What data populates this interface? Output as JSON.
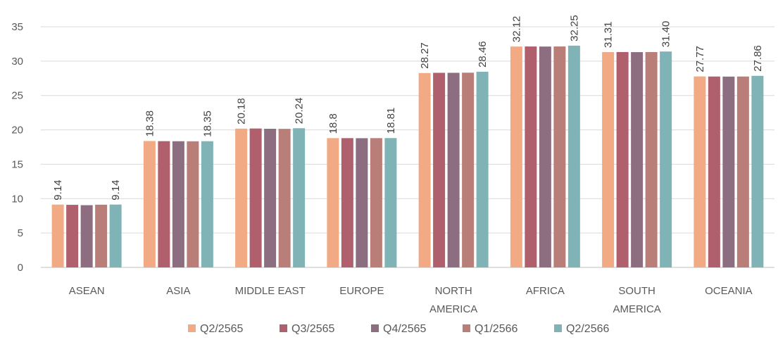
{
  "chart_data": {
    "type": "bar",
    "title": "",
    "xlabel": "",
    "ylabel": "",
    "ylim": [
      0,
      35
    ],
    "yticks": [
      0,
      5,
      10,
      15,
      20,
      25,
      30,
      35
    ],
    "grid": true,
    "legend_position": "bottom",
    "categories": [
      [
        "ASEAN"
      ],
      [
        "ASIA"
      ],
      [
        "MIDDLE EAST"
      ],
      [
        "EUROPE"
      ],
      [
        "NORTH",
        "AMERICA"
      ],
      [
        "AFRICA"
      ],
      [
        "SOUTH",
        "AMERICA"
      ],
      [
        "OCEANIA"
      ]
    ],
    "series": [
      {
        "name": "Q2/2565",
        "color": "#F2AA84",
        "values": [
          9.14,
          18.38,
          20.18,
          18.8,
          28.27,
          32.12,
          31.31,
          27.77
        ]
      },
      {
        "name": "Q3/2565",
        "color": "#B05F6D",
        "values": [
          9.1,
          18.36,
          20.2,
          18.8,
          28.3,
          32.13,
          31.32,
          27.76
        ]
      },
      {
        "name": "Q4/2565",
        "color": "#8D6E81",
        "values": [
          9.05,
          18.35,
          20.16,
          18.79,
          28.3,
          32.12,
          31.31,
          27.75
        ]
      },
      {
        "name": "Q1/2566",
        "color": "#BA7E79",
        "values": [
          9.12,
          18.34,
          20.15,
          18.8,
          28.32,
          32.13,
          31.32,
          27.76
        ]
      },
      {
        "name": "Q2/2566",
        "color": "#7FB3B6",
        "values": [
          9.14,
          18.35,
          20.24,
          18.81,
          28.46,
          32.25,
          31.4,
          27.86
        ]
      }
    ],
    "data_labels": [
      {
        "category": 0,
        "series": 0,
        "text": "9.14"
      },
      {
        "category": 0,
        "series": 4,
        "text": "9.14"
      },
      {
        "category": 1,
        "series": 0,
        "text": "18.38"
      },
      {
        "category": 1,
        "series": 4,
        "text": "18.35"
      },
      {
        "category": 2,
        "series": 0,
        "text": "20.18"
      },
      {
        "category": 2,
        "series": 4,
        "text": "20.24"
      },
      {
        "category": 3,
        "series": 0,
        "text": "18.8"
      },
      {
        "category": 3,
        "series": 4,
        "text": "18.81"
      },
      {
        "category": 4,
        "series": 0,
        "text": "28.27"
      },
      {
        "category": 4,
        "series": 4,
        "text": "28.46"
      },
      {
        "category": 5,
        "series": 0,
        "text": "32.12"
      },
      {
        "category": 5,
        "series": 4,
        "text": "32.25"
      },
      {
        "category": 6,
        "series": 0,
        "text": "31.31"
      },
      {
        "category": 6,
        "series": 4,
        "text": "31.40"
      },
      {
        "category": 7,
        "series": 0,
        "text": "27.77"
      },
      {
        "category": 7,
        "series": 4,
        "text": "27.86"
      }
    ]
  }
}
